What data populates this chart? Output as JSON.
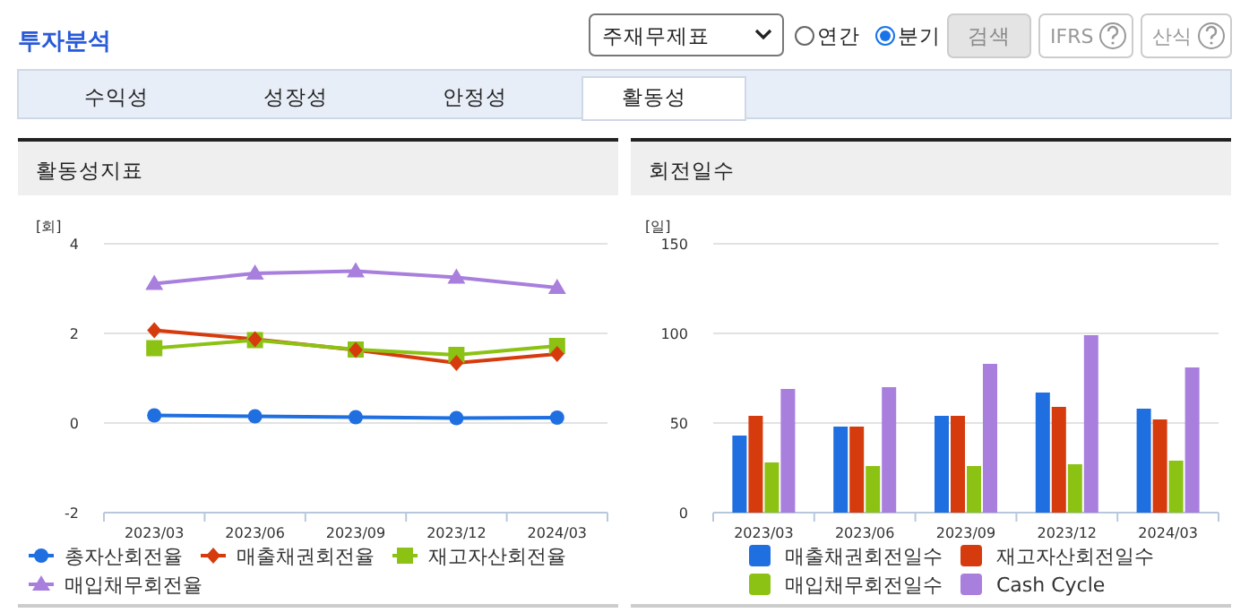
{
  "chart_data": [
    {
      "type": "other",
      "title": "투자분석",
      "annotations": [
        "주재무제표",
        "연간",
        "분기",
        "검색",
        "IFRS",
        "산식",
        "수익성",
        "성장성",
        "안정성",
        "활동성"
      ]
    },
    {
      "type": "line",
      "title": "활동성지표",
      "ylabel": "[회]",
      "categories": [
        "2023/03",
        "2023/06",
        "2023/09",
        "2023/12",
        "2024/03"
      ],
      "ylim": [
        -2,
        4
      ],
      "yticks": [
        -2,
        0,
        2,
        4
      ],
      "grid": "y",
      "legend": "bottom",
      "series": [
        {
          "name": "총자산회전율",
          "color": "#1f6fe0",
          "marker": "circle",
          "values": [
            0.17,
            0.15,
            0.13,
            0.11,
            0.12
          ]
        },
        {
          "name": "매출채권회전율",
          "color": "#d63b0e",
          "marker": "diamond",
          "values": [
            2.07,
            1.87,
            1.63,
            1.34,
            1.54
          ]
        },
        {
          "name": "재고자산회전율",
          "color": "#8cc214",
          "marker": "square",
          "values": [
            1.67,
            1.85,
            1.64,
            1.52,
            1.72
          ]
        },
        {
          "name": "매입채무회전율",
          "color": "#a87fdc",
          "marker": "triangle",
          "values": [
            3.11,
            3.34,
            3.39,
            3.25,
            3.02
          ]
        }
      ]
    },
    {
      "type": "bar",
      "title": "회전일수",
      "ylabel": "[일]",
      "categories": [
        "2023/03",
        "2023/06",
        "2023/09",
        "2023/12",
        "2024/03"
      ],
      "ylim": [
        0,
        150
      ],
      "yticks": [
        0,
        50,
        100,
        150
      ],
      "grid": "y",
      "legend": "bottom",
      "series": [
        {
          "name": "매출채권회전일수",
          "color": "#1f6fe0",
          "values": [
            43,
            48,
            54,
            67,
            58
          ]
        },
        {
          "name": "재고자산회전일수",
          "color": "#d63b0e",
          "values": [
            54,
            48,
            54,
            59,
            52
          ]
        },
        {
          "name": "매입채무회전일수",
          "color": "#8cc214",
          "values": [
            28,
            26,
            26,
            27,
            29
          ]
        },
        {
          "name": "Cash Cycle",
          "color": "#a87fdc",
          "values": [
            69,
            70,
            83,
            99,
            81
          ]
        }
      ]
    }
  ]
}
